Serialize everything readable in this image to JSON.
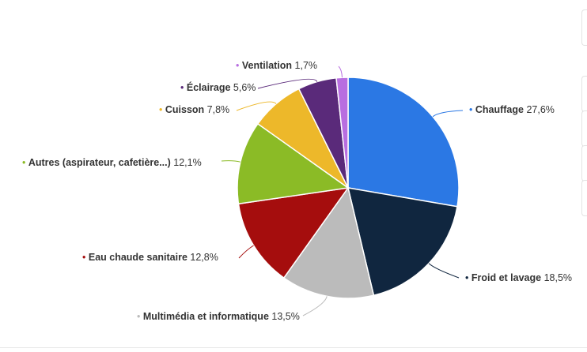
{
  "chart_data": {
    "type": "pie",
    "start_angle_deg": 0,
    "direction": "clockwise",
    "slices": [
      {
        "label": "Chauffage",
        "value": 27.6,
        "value_text": "27,6%",
        "color": "#2b78e4"
      },
      {
        "label": "Froid et lavage",
        "value": 18.5,
        "value_text": "18,5%",
        "color": "#10263f"
      },
      {
        "label": "Multimédia et informatique",
        "value": 13.5,
        "value_text": "13,5%",
        "color": "#bbbbbb"
      },
      {
        "label": "Eau chaude sanitaire",
        "value": 12.8,
        "value_text": "12,8%",
        "color": "#a50d0d"
      },
      {
        "label": "Autres (aspirateur, cafetière...)",
        "value": 12.1,
        "value_text": "12,1%",
        "color": "#8bbb26"
      },
      {
        "label": "Cuisson",
        "value": 7.8,
        "value_text": "7,8%",
        "color": "#edb82a"
      },
      {
        "label": "Éclairage",
        "value": 5.6,
        "value_text": "5,6%",
        "color": "#5a2a7a"
      },
      {
        "label": "Ventilation",
        "value": 1.7,
        "value_text": "1,7%",
        "color": "#b86ee0"
      }
    ]
  }
}
